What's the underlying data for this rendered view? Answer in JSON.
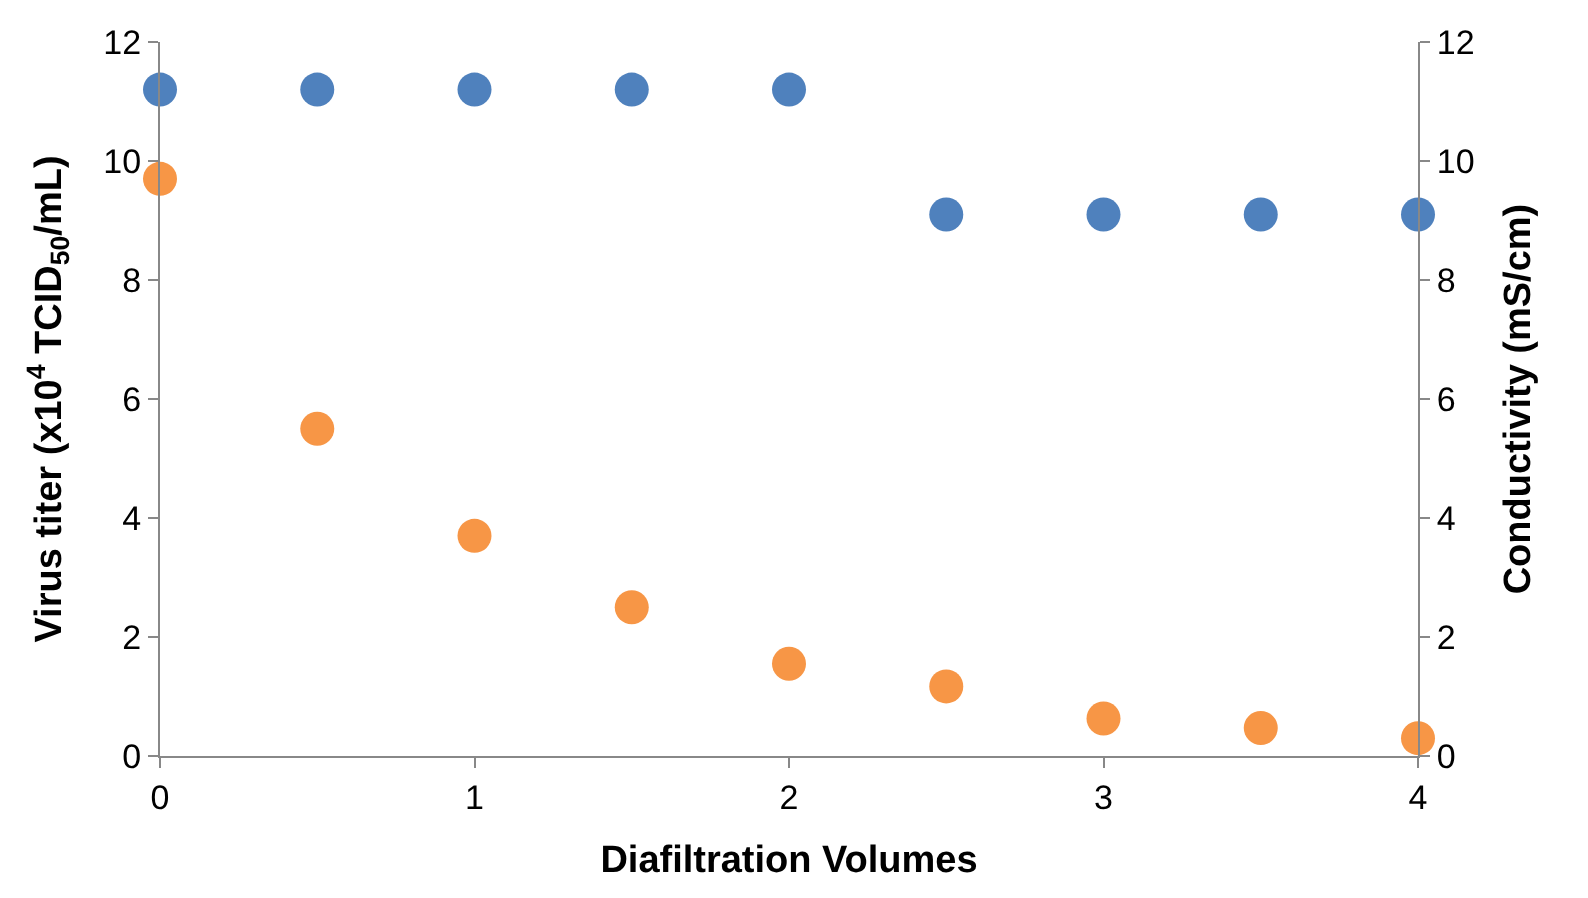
{
  "chart_data": {
    "type": "scatter",
    "xlabel": "Diafiltration Volumes",
    "ylabel": "Virus titer (x10$^{4}$ TCID$_{50}$/mL)",
    "y2label": "Conductivity (mS/cm)",
    "x": [
      0,
      0.5,
      1,
      1.5,
      2,
      2.5,
      3,
      3.5,
      4
    ],
    "series": [
      {
        "color": "#4f81bd",
        "values": [
          11.2,
          11.2,
          11.2,
          11.2,
          11.2,
          9.1,
          9.1,
          9.1,
          9.1
        ]
      },
      {
        "color": "#f79646",
        "axis": "y2",
        "values": [
          9.7,
          5.5,
          3.7,
          2.5,
          1.55,
          1.17,
          0.63,
          0.47,
          0.3
        ]
      }
    ],
    "xlim": [
      0,
      4
    ],
    "xticks": [
      0,
      1,
      2,
      3,
      4
    ],
    "ylim": [
      0,
      12
    ],
    "yticks": [
      0,
      2,
      4,
      6,
      8,
      10,
      12
    ],
    "y2lim": [
      0,
      12
    ],
    "y2ticks": [
      0,
      2,
      4,
      6,
      8,
      10,
      12
    ],
    "legend": false,
    "marker": "circle"
  }
}
